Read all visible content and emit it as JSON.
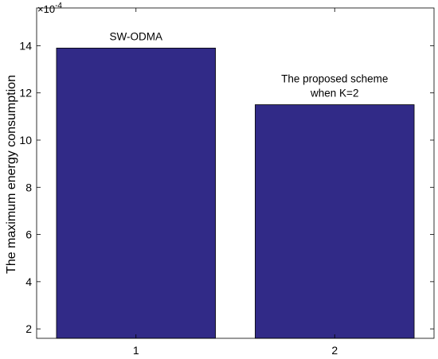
{
  "chart_data": {
    "type": "bar",
    "categories": [
      "1",
      "2"
    ],
    "values": [
      13.9,
      11.5
    ],
    "ylim": [
      1.6,
      15.6
    ],
    "yticks": [
      2,
      4,
      6,
      8,
      10,
      12,
      14
    ],
    "ylabel": "The maximum energy consumption",
    "xlabel": "",
    "y_exponent_label": "×10",
    "y_exponent_power": "-4",
    "bar_color": "#312a87",
    "grid": false,
    "annotations": [
      {
        "lines": [
          "SW-ODMA"
        ],
        "category": "1"
      },
      {
        "lines": [
          "The proposed scheme",
          "when K=2"
        ],
        "category": "2"
      }
    ]
  }
}
